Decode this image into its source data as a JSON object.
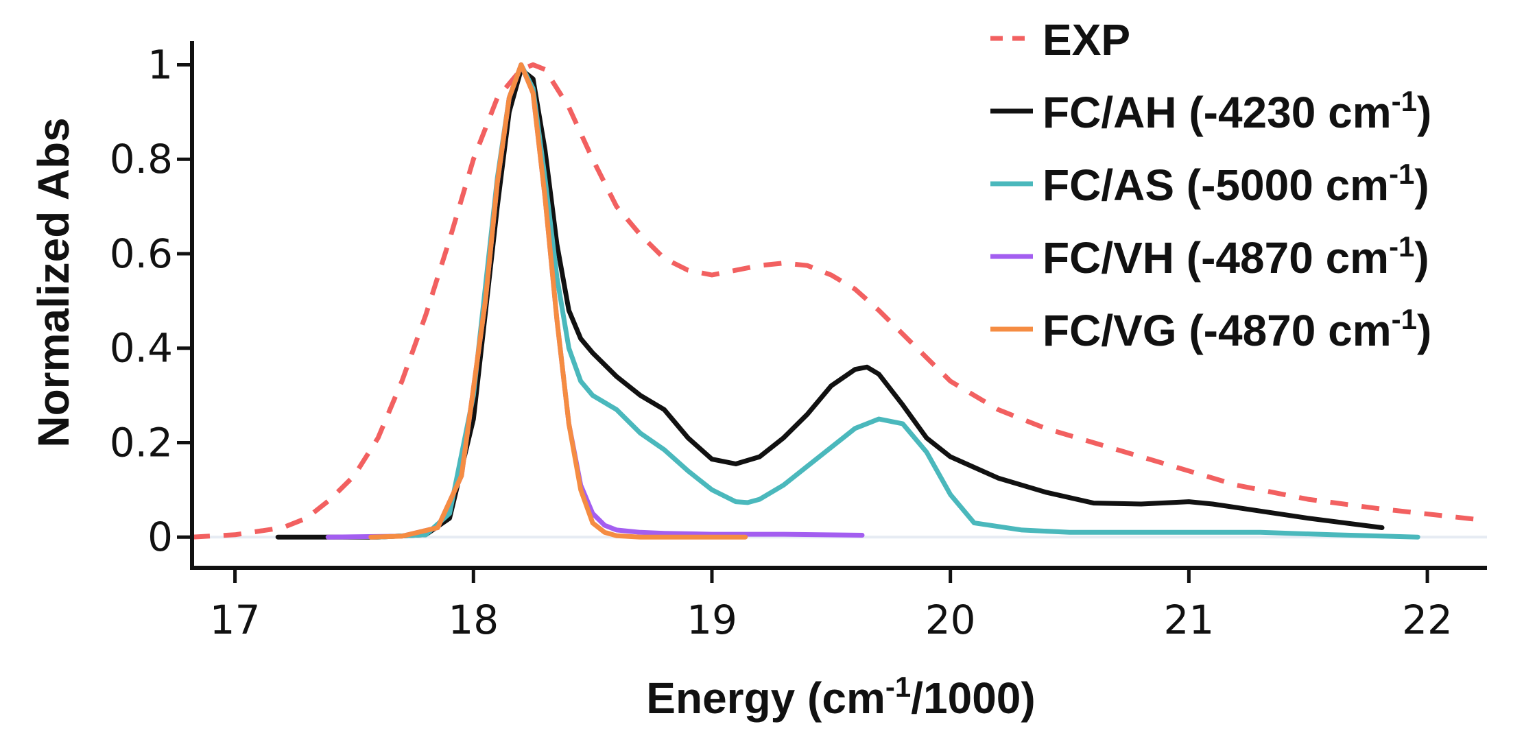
{
  "chart_data": {
    "type": "line",
    "xlabel": {
      "pre": "Energy (cm",
      "sup": "-1",
      "post": "/1000)"
    },
    "ylabel": "Normalized Abs",
    "xlim": [
      16.82,
      22.25
    ],
    "ylim": [
      -0.065,
      1.05
    ],
    "xticks": [
      17,
      18,
      19,
      20,
      21,
      22
    ],
    "yticks": [
      0,
      0.2,
      0.4,
      0.6,
      0.8,
      1
    ],
    "ytick_labels": [
      "0",
      "0.2",
      "0.4",
      "0.6",
      "0.8",
      "1"
    ],
    "baseline": 0,
    "baseline_color": "#e6ebf3",
    "series": [
      {
        "name": "EXP",
        "sup": "",
        "post": "",
        "color": "#f26060",
        "dashed": true,
        "x": [
          16.82,
          17.0,
          17.2,
          17.3,
          17.4,
          17.5,
          17.6,
          17.7,
          17.8,
          17.9,
          18.0,
          18.1,
          18.2,
          18.25,
          18.3,
          18.4,
          18.5,
          18.6,
          18.7,
          18.8,
          18.9,
          19.0,
          19.1,
          19.2,
          19.3,
          19.4,
          19.5,
          19.6,
          19.7,
          19.8,
          19.9,
          20.0,
          20.2,
          20.4,
          20.6,
          20.8,
          21.0,
          21.2,
          21.5,
          21.8,
          22.25
        ],
        "y": [
          0.0,
          0.005,
          0.02,
          0.04,
          0.08,
          0.13,
          0.21,
          0.33,
          0.47,
          0.63,
          0.8,
          0.93,
          0.99,
          1.0,
          0.99,
          0.91,
          0.8,
          0.7,
          0.64,
          0.59,
          0.565,
          0.555,
          0.565,
          0.575,
          0.58,
          0.575,
          0.555,
          0.525,
          0.48,
          0.43,
          0.38,
          0.33,
          0.27,
          0.23,
          0.2,
          0.17,
          0.14,
          0.11,
          0.08,
          0.06,
          0.035
        ]
      },
      {
        "name": "FC/AH",
        "sup": "-1",
        "pre": "FC/AH (-4230 cm",
        "post": ")",
        "color": "#111111",
        "dashed": false,
        "x": [
          17.18,
          17.6,
          17.8,
          17.9,
          18.0,
          18.1,
          18.15,
          18.2,
          18.25,
          18.3,
          18.35,
          18.4,
          18.45,
          18.5,
          18.6,
          18.7,
          18.8,
          18.9,
          19.0,
          19.1,
          19.2,
          19.3,
          19.4,
          19.5,
          19.6,
          19.65,
          19.7,
          19.8,
          19.9,
          20.0,
          20.2,
          20.4,
          20.6,
          20.8,
          21.0,
          21.1,
          21.3,
          21.5,
          21.81
        ],
        "y": [
          0.0,
          0.0,
          0.005,
          0.04,
          0.25,
          0.7,
          0.9,
          0.99,
          0.97,
          0.82,
          0.62,
          0.48,
          0.42,
          0.39,
          0.34,
          0.3,
          0.27,
          0.21,
          0.165,
          0.155,
          0.17,
          0.21,
          0.26,
          0.32,
          0.355,
          0.36,
          0.345,
          0.28,
          0.21,
          0.17,
          0.125,
          0.095,
          0.072,
          0.07,
          0.075,
          0.07,
          0.055,
          0.04,
          0.02
        ]
      },
      {
        "name": "FC/AS",
        "sup": "-1",
        "pre": "FC/AS (-5000 cm",
        "post": ")",
        "color": "#4ab8bc",
        "dashed": false,
        "x": [
          17.6,
          17.8,
          17.9,
          18.0,
          18.1,
          18.15,
          18.2,
          18.25,
          18.3,
          18.35,
          18.4,
          18.45,
          18.5,
          18.6,
          18.7,
          18.8,
          18.9,
          19.0,
          19.1,
          19.15,
          19.2,
          19.3,
          19.4,
          19.5,
          19.6,
          19.7,
          19.8,
          19.9,
          20.0,
          20.1,
          20.3,
          20.5,
          21.0,
          21.3,
          21.6,
          21.96
        ],
        "y": [
          0.0,
          0.005,
          0.05,
          0.3,
          0.76,
          0.93,
          1.0,
          0.95,
          0.76,
          0.55,
          0.4,
          0.33,
          0.3,
          0.27,
          0.22,
          0.185,
          0.14,
          0.1,
          0.075,
          0.073,
          0.08,
          0.11,
          0.15,
          0.19,
          0.23,
          0.25,
          0.24,
          0.18,
          0.09,
          0.03,
          0.015,
          0.01,
          0.01,
          0.01,
          0.005,
          0.0
        ]
      },
      {
        "name": "FC/VH",
        "sup": "-1",
        "pre": "FC/VH (-4870 cm",
        "post": ")",
        "color": "#a35ef0",
        "dashed": false,
        "x": [
          17.39,
          17.7,
          17.85,
          17.95,
          18.05,
          18.1,
          18.15,
          18.2,
          18.25,
          18.3,
          18.35,
          18.4,
          18.45,
          18.5,
          18.55,
          18.6,
          18.7,
          18.8,
          19.0,
          19.3,
          19.63
        ],
        "y": [
          0.0,
          0.002,
          0.02,
          0.13,
          0.5,
          0.75,
          0.93,
          1.0,
          0.94,
          0.72,
          0.46,
          0.24,
          0.11,
          0.05,
          0.025,
          0.015,
          0.01,
          0.008,
          0.006,
          0.006,
          0.004
        ]
      },
      {
        "name": "FC/VG",
        "sup": "-1",
        "pre": "FC/VG (-4870 cm",
        "post": ")",
        "color": "#f58c42",
        "dashed": false,
        "x": [
          17.57,
          17.7,
          17.85,
          17.95,
          18.05,
          18.1,
          18.15,
          18.2,
          18.25,
          18.3,
          18.35,
          18.4,
          18.45,
          18.5,
          18.55,
          18.6,
          18.7,
          18.8,
          19.14
        ],
        "y": [
          0.0,
          0.002,
          0.02,
          0.13,
          0.5,
          0.75,
          0.93,
          1.0,
          0.94,
          0.72,
          0.46,
          0.24,
          0.1,
          0.03,
          0.01,
          0.003,
          0.0,
          0.0,
          0.0
        ]
      }
    ]
  }
}
